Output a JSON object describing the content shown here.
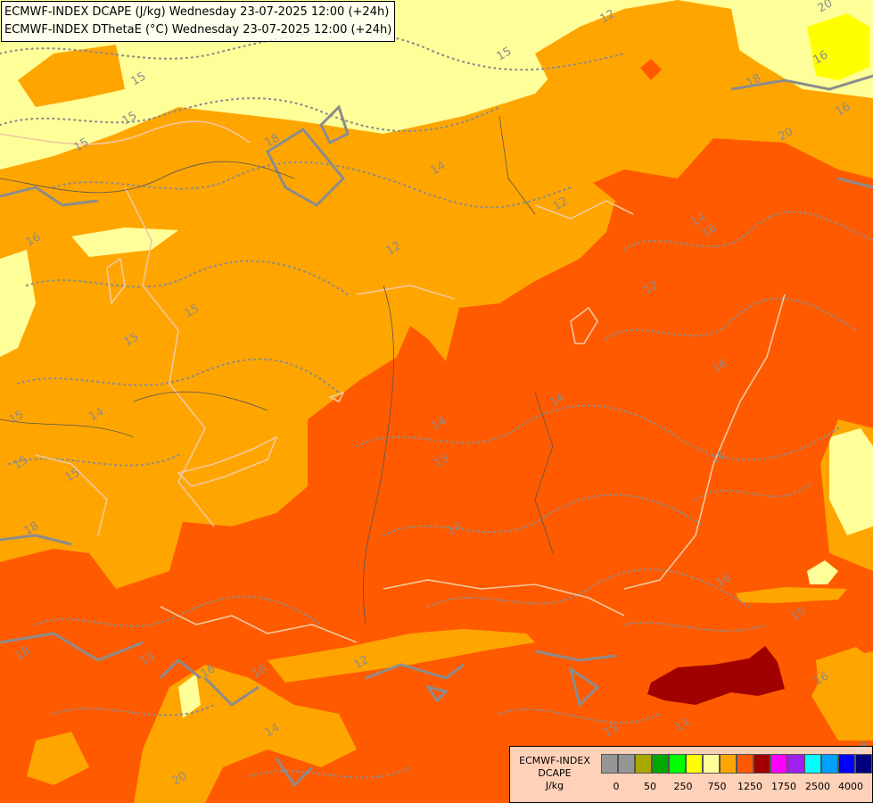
{
  "header": {
    "line1": "ECMWF-INDEX DCAPE (J/kg) Wednesday 23-07-2025 12:00 (+24h)",
    "line2": "ECMWF-INDEX DThetaE (°C) Wednesday 23-07-2025 12:00 (+24h)"
  },
  "legend": {
    "model": "ECMWF-INDEX",
    "param": "DCAPE",
    "unit": "J/kg",
    "colors": [
      "#969696",
      "#969696",
      "#a8a800",
      "#00a800",
      "#00ff00",
      "#ffff00",
      "#ffff99",
      "#ffa500",
      "#ff5a00",
      "#a00000",
      "#ff00ff",
      "#a020f0",
      "#00ffff",
      "#00a0ff",
      "#0000ff",
      "#00007f"
    ],
    "ticks": [
      "0",
      "50",
      "250",
      "750",
      "1250",
      "1750",
      "2500",
      "4000"
    ]
  },
  "contour_labels": [
    "16",
    "15",
    "12",
    "18",
    "16",
    "14",
    "15",
    "15",
    "12",
    "14",
    "15",
    "14",
    "15",
    "12",
    "16",
    "18",
    "15",
    "12",
    "14",
    "16",
    "15",
    "15",
    "18",
    "14",
    "16",
    "20",
    "14",
    "15",
    "15",
    "12",
    "14",
    "15",
    "18",
    "16",
    "16",
    "20",
    "16",
    "18",
    "16",
    "20",
    "14",
    "15",
    "15",
    "16"
  ],
  "colors": {
    "light_yellow": "#ffff99",
    "yellow": "#ffff00",
    "orange": "#ffa500",
    "red_orange": "#ff5a00",
    "dark_red": "#a00000",
    "contour": "#8c8c8c",
    "border": "#f0c8a0"
  }
}
